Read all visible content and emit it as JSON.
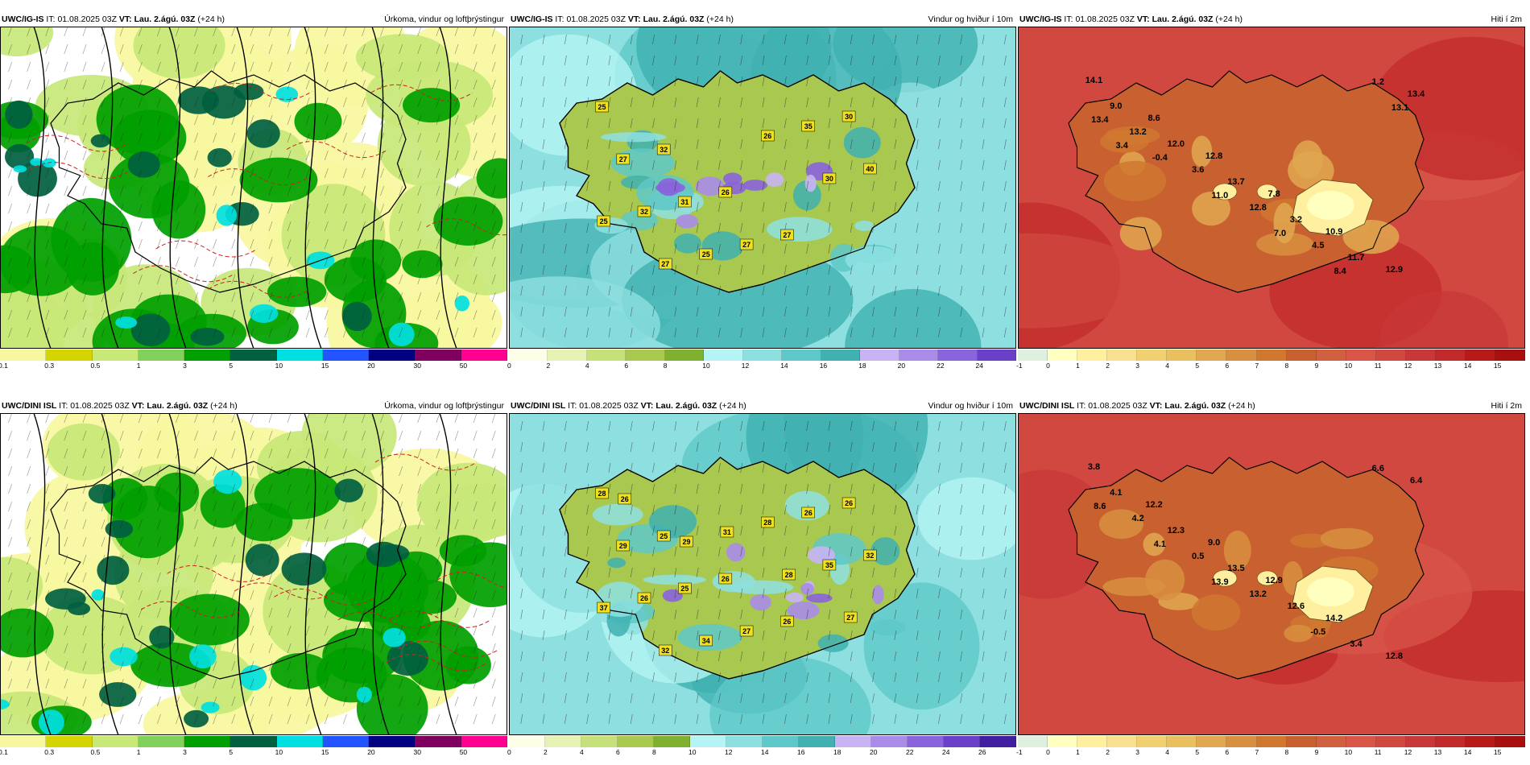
{
  "rows": [
    {
      "panels": [
        {
          "type": "precip",
          "model": "UWC/IG-IS",
          "it_label": "IT:",
          "it_value": "01.08.2025 03Z",
          "vt_label": "VT:",
          "vt_value": "Lau. 2.ágú. 03Z",
          "lead": "(+24 h)",
          "product": "Úrkoma, vindur og loftþrýstingur",
          "legend": [
            "0.1",
            "0.3",
            "0.5",
            "1",
            "3",
            "5",
            "10",
            "15",
            "20",
            "30",
            "50"
          ]
        },
        {
          "type": "wind",
          "model": "UWC/IG-IS",
          "it_label": "IT:",
          "it_value": "01.08.2025 03Z",
          "vt_label": "VT:",
          "vt_value": "Lau. 2.ágú. 03Z",
          "lead": "(+24 h)",
          "product": "Vindur og hviður í 10m",
          "legend": [
            "0",
            "2",
            "4",
            "6",
            "8",
            "10",
            "12",
            "14",
            "16",
            "18",
            "20",
            "22",
            "24"
          ],
          "gusts": [
            "25",
            "32",
            "26",
            "27",
            "30",
            "27",
            "31",
            "27",
            "35",
            "40",
            "32",
            "25",
            "26",
            "30",
            "25",
            "27"
          ]
        },
        {
          "type": "temp",
          "model": "UWC/IG-IS",
          "it_label": "IT:",
          "it_value": "01.08.2025 03Z",
          "vt_label": "VT:",
          "vt_value": "Lau. 2.ágú. 03Z",
          "lead": "(+24 h)",
          "product": "Hiti í 2m",
          "legend": [
            "-1",
            "0",
            "1",
            "2",
            "3",
            "4",
            "5",
            "6",
            "7",
            "8",
            "9",
            "10",
            "11",
            "12",
            "13",
            "14",
            "15"
          ],
          "temps": [
            "14.1",
            "8.6",
            "12.8",
            "7.8",
            "10.9",
            "12.9",
            "9.0",
            "12.0",
            "13.7",
            "3.2",
            "11.7",
            "13.4",
            "13.2",
            "3.6",
            "12.8",
            "4.5",
            "1.2",
            "13.4",
            "-0.4",
            "11.0",
            "7.0",
            "8.4",
            "13.1",
            "3.4"
          ]
        }
      ]
    },
    {
      "panels": [
        {
          "type": "precip",
          "model": "UWC/DINI ISL",
          "it_label": "IT:",
          "it_value": "01.08.2025 03Z",
          "vt_label": "VT:",
          "vt_value": "Lau. 2.ágú. 03Z",
          "lead": "(+24 h)",
          "product": "Úrkoma, vindur og loftþrýstingur",
          "legend": [
            "0.1",
            "0.3",
            "0.5",
            "1",
            "3",
            "5",
            "10",
            "15",
            "20",
            "30",
            "50"
          ]
        },
        {
          "type": "wind",
          "model": "UWC/DINI ISL",
          "it_label": "IT:",
          "it_value": "01.08.2025 03Z",
          "vt_label": "VT:",
          "vt_value": "Lau. 2.ágú. 03Z",
          "lead": "(+24 h)",
          "product": "Vindur og hviður í 10m",
          "legend": [
            "0",
            "2",
            "4",
            "6",
            "8",
            "10",
            "12",
            "14",
            "16",
            "18",
            "20",
            "22",
            "24",
            "26"
          ],
          "gusts": [
            "28",
            "25",
            "26",
            "26",
            "26",
            "29",
            "25",
            "27",
            "26",
            "32",
            "26",
            "34",
            "28",
            "35",
            "37",
            "32",
            "31",
            "28",
            "27",
            "26",
            "29"
          ]
        },
        {
          "type": "temp",
          "model": "UWC/DINI ISL",
          "it_label": "IT:",
          "it_value": "01.08.2025 03Z",
          "vt_label": "VT:",
          "vt_value": "Lau. 2.ágú. 03Z",
          "lead": "(+24 h)",
          "product": "Hiti í 2m",
          "legend": [
            "-1",
            "0",
            "1",
            "2",
            "3",
            "4",
            "5",
            "6",
            "7",
            "8",
            "9",
            "10",
            "11",
            "12",
            "13",
            "14",
            "15"
          ],
          "temps": [
            "3.8",
            "12.2",
            "9.0",
            "12.9",
            "14.2",
            "12.8",
            "4.1",
            "12.3",
            "13.5",
            "12.6",
            "3.4",
            "6.4",
            "4.2",
            "0.5",
            "13.2",
            "-0.5",
            "6.6",
            "8.6",
            "4.1",
            "13.9"
          ]
        }
      ]
    }
  ],
  "palettes": {
    "precip": [
      "#f7f7a0",
      "#d4d400",
      "#c8e878",
      "#82d15a",
      "#00a000",
      "#006040",
      "#00e0e0",
      "#2255ff",
      "#000080",
      "#800060",
      "#ff0090",
      "#ff0000"
    ],
    "wind": [
      "#fdfde8",
      "#e6f2b4",
      "#c6e07a",
      "#a8c850",
      "#7fb030",
      "#b4f4f4",
      "#8ee0e0",
      "#5ec8c8",
      "#40b0b0",
      "#c8b4f4",
      "#a88ce8",
      "#8a64dc",
      "#6a40c8",
      "#4020a0",
      "#ffb0b0",
      "#ff8080"
    ],
    "temp": [
      "#e0f0e0",
      "#ffffc0",
      "#fff0a0",
      "#f8e090",
      "#f0d070",
      "#e8c060",
      "#e0a850",
      "#d89040",
      "#d07830",
      "#c86030",
      "#d06040",
      "#d85548",
      "#d04840",
      "#c83838",
      "#c02a2a",
      "#b81a1a",
      "#a80f0f"
    ]
  }
}
